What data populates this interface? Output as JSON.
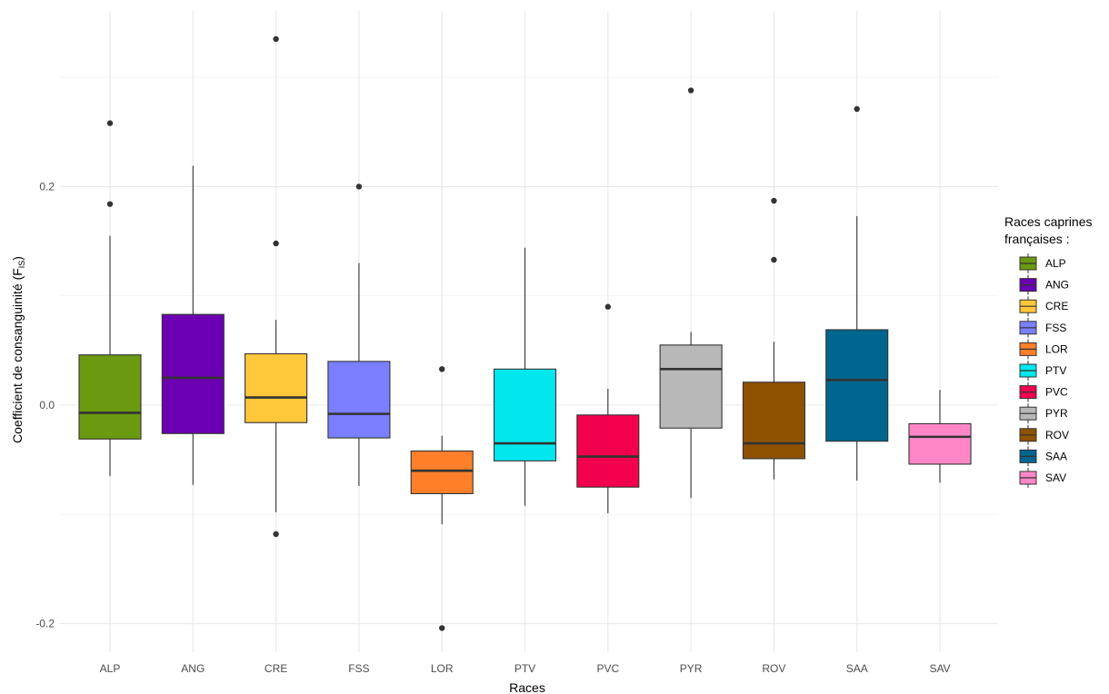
{
  "chart_data": {
    "type": "boxplot",
    "title": "",
    "xlabel": "Races",
    "ylabel": {
      "main": "Coefficient de consanguinité (F",
      "sub": "IS",
      "close": ")"
    },
    "ylim": [
      -0.225,
      0.34
    ],
    "yticks": [
      -0.2,
      0.0,
      0.2
    ],
    "ytick_labels": [
      "-0.2",
      "0.0",
      "0.2"
    ],
    "grid": true,
    "legend_position": "right",
    "legend_title": [
      "Races caprines",
      "françaises :"
    ],
    "categories": [
      "ALP",
      "ANG",
      "CRE",
      "FSS",
      "LOR",
      "PTV",
      "PVC",
      "PYR",
      "ROV",
      "SAA",
      "SAV"
    ],
    "boxes": [
      {
        "name": "ALP",
        "color": "#6B990F",
        "whisker_low": -0.065,
        "q1": -0.031,
        "median": -0.007,
        "q3": 0.046,
        "whisker_high": 0.155,
        "outliers": [
          0.184,
          0.258
        ]
      },
      {
        "name": "ANG",
        "color": "#6A00B2",
        "whisker_low": -0.073,
        "q1": -0.026,
        "median": 0.025,
        "q3": 0.083,
        "whisker_high": 0.219,
        "outliers": []
      },
      {
        "name": "CRE",
        "color": "#FFC73A",
        "whisker_low": -0.098,
        "q1": -0.016,
        "median": 0.007,
        "q3": 0.047,
        "whisker_high": 0.078,
        "outliers": [
          0.148,
          -0.118,
          0.335
        ]
      },
      {
        "name": "FSS",
        "color": "#7A7FFF",
        "whisker_low": -0.074,
        "q1": -0.03,
        "median": -0.008,
        "q3": 0.04,
        "whisker_high": 0.13,
        "outliers": [
          0.2
        ]
      },
      {
        "name": "LOR",
        "color": "#FF7F2A",
        "whisker_low": -0.109,
        "q1": -0.081,
        "median": -0.06,
        "q3": -0.042,
        "whisker_high": -0.028,
        "outliers": [
          0.033,
          -0.204
        ]
      },
      {
        "name": "PTV",
        "color": "#00E8ED",
        "whisker_low": -0.092,
        "q1": -0.051,
        "median": -0.035,
        "q3": 0.033,
        "whisker_high": 0.144,
        "outliers": []
      },
      {
        "name": "PVC",
        "color": "#F2004D",
        "whisker_low": -0.099,
        "q1": -0.075,
        "median": -0.047,
        "q3": -0.009,
        "whisker_high": 0.015,
        "outliers": [
          0.09
        ]
      },
      {
        "name": "PYR",
        "color": "#B8B8B8",
        "whisker_low": -0.085,
        "q1": -0.021,
        "median": 0.033,
        "q3": 0.055,
        "whisker_high": 0.067,
        "outliers": [
          0.288
        ]
      },
      {
        "name": "ROV",
        "color": "#8F5200",
        "whisker_low": -0.068,
        "q1": -0.049,
        "median": -0.035,
        "q3": 0.021,
        "whisker_high": 0.058,
        "outliers": [
          0.133,
          0.187
        ]
      },
      {
        "name": "SAA",
        "color": "#00658F",
        "whisker_low": -0.069,
        "q1": -0.033,
        "median": 0.023,
        "q3": 0.069,
        "whisker_high": 0.173,
        "outliers": [
          0.271
        ]
      },
      {
        "name": "SAV",
        "color": "#FF87C7",
        "whisker_low": -0.071,
        "q1": -0.054,
        "median": -0.029,
        "q3": -0.017,
        "whisker_high": 0.014,
        "outliers": []
      }
    ]
  }
}
